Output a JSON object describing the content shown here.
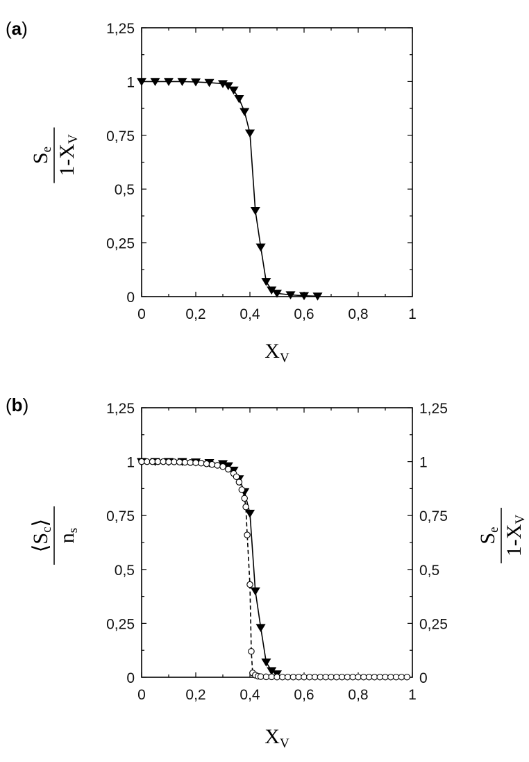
{
  "chart_data": [
    {
      "panel": "(a)",
      "panel_letter": "a",
      "type": "line",
      "xlabel": {
        "main": "X",
        "sub": "V"
      },
      "ylabel": {
        "numerator": "S",
        "numerator_sub": "e",
        "denominator": "1-X",
        "denominator_sub": "V"
      },
      "xlim": [
        0,
        1
      ],
      "ylim": [
        0,
        1.25
      ],
      "xticks": [
        0,
        0.2,
        0.4,
        0.6,
        0.8,
        1
      ],
      "xtick_labels": [
        "0",
        "0,2",
        "0,4",
        "0,6",
        "0,8",
        "1"
      ],
      "yticks": [
        0,
        0.25,
        0.5,
        0.75,
        1,
        1.25
      ],
      "ytick_labels": [
        "0",
        "0,25",
        "0,5",
        "0,75",
        "1",
        "1,25"
      ],
      "grid": false,
      "series": [
        {
          "marker": "triangle-down",
          "line": "solid",
          "x": [
            0,
            0.05,
            0.1,
            0.15,
            0.2,
            0.25,
            0.3,
            0.32,
            0.34,
            0.36,
            0.38,
            0.4,
            0.42,
            0.44,
            0.46,
            0.48,
            0.5,
            0.55,
            0.6,
            0.65
          ],
          "y": [
            1.0,
            1.0,
            1.0,
            1.0,
            0.998,
            0.995,
            0.99,
            0.98,
            0.96,
            0.92,
            0.86,
            0.76,
            0.4,
            0.23,
            0.07,
            0.03,
            0.015,
            0.008,
            0.004,
            0.002
          ]
        }
      ]
    },
    {
      "panel": "(b)",
      "panel_letter": "b",
      "type": "line",
      "xlabel": {
        "main": "X",
        "sub": "V"
      },
      "ylabel_left": {
        "numerator": "S",
        "numerator_sub": "c",
        "denominator": "n",
        "denominator_sub": "s"
      },
      "ylabel_right": {
        "numerator": "S",
        "numerator_sub": "e",
        "denominator": "1-X",
        "denominator_sub": "V"
      },
      "xlim": [
        0,
        1
      ],
      "ylim": [
        0,
        1.25
      ],
      "xticks": [
        0,
        0.2,
        0.4,
        0.6,
        0.8,
        1
      ],
      "xtick_labels": [
        "0",
        "0,2",
        "0,4",
        "0,6",
        "0,8",
        "1"
      ],
      "yticks": [
        0,
        0.25,
        0.5,
        0.75,
        1,
        1.25
      ],
      "ytick_labels": [
        "0",
        "0,25",
        "0,5",
        "0,75",
        "1",
        "1,25"
      ],
      "grid": false,
      "series": [
        {
          "marker": "triangle-down",
          "line": "solid",
          "x": [
            0,
            0.05,
            0.1,
            0.15,
            0.2,
            0.25,
            0.3,
            0.32,
            0.34,
            0.36,
            0.38,
            0.4,
            0.42,
            0.44,
            0.46,
            0.48,
            0.5
          ],
          "y": [
            1.0,
            1.0,
            1.0,
            1.0,
            0.998,
            0.995,
            0.99,
            0.98,
            0.96,
            0.92,
            0.86,
            0.76,
            0.4,
            0.23,
            0.07,
            0.03,
            0.015
          ]
        },
        {
          "marker": "circle-open",
          "line": "dashed",
          "x": [
            0,
            0.02,
            0.04,
            0.06,
            0.08,
            0.1,
            0.12,
            0.14,
            0.16,
            0.18,
            0.2,
            0.22,
            0.24,
            0.26,
            0.28,
            0.3,
            0.32,
            0.34,
            0.35,
            0.36,
            0.37,
            0.38,
            0.385,
            0.39,
            0.4,
            0.405,
            0.41,
            0.42,
            0.43,
            0.44,
            0.46,
            0.48,
            0.5,
            0.52,
            0.54,
            0.56,
            0.58,
            0.6,
            0.62,
            0.64,
            0.66,
            0.68,
            0.7,
            0.72,
            0.74,
            0.76,
            0.78,
            0.8,
            0.82,
            0.84,
            0.86,
            0.88,
            0.9,
            0.92,
            0.94,
            0.96,
            0.98
          ],
          "y": [
            1.0,
            1.0,
            1.0,
            1.0,
            1.0,
            0.999,
            0.999,
            0.998,
            0.997,
            0.996,
            0.995,
            0.993,
            0.99,
            0.987,
            0.983,
            0.977,
            0.965,
            0.945,
            0.93,
            0.905,
            0.87,
            0.83,
            0.79,
            0.66,
            0.43,
            0.12,
            0.02,
            0.01,
            0.005,
            0.003,
            0.002,
            0.002,
            0.001,
            0.001,
            0.001,
            0.001,
            0.001,
            0.001,
            0.001,
            0.001,
            0.001,
            0.001,
            0.001,
            0.001,
            0.001,
            0.001,
            0.001,
            0.001,
            0.001,
            0.001,
            0.001,
            0.001,
            0.001,
            0.001,
            0.001,
            0.001,
            0.001
          ]
        }
      ]
    }
  ]
}
